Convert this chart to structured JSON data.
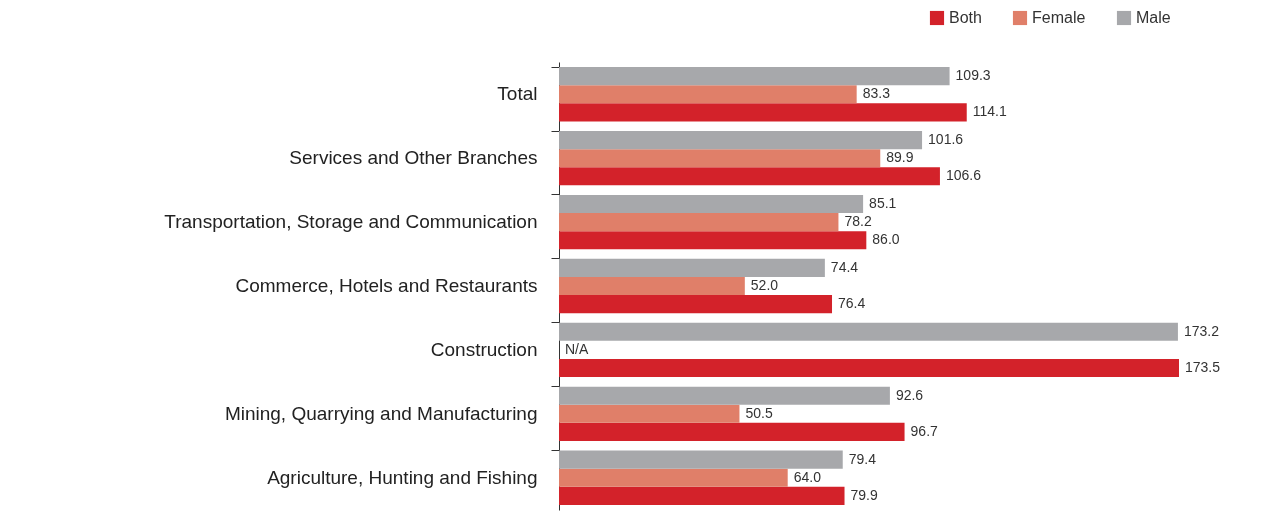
{
  "chart_data": {
    "type": "bar",
    "orientation": "horizontal",
    "legend": "top right",
    "categories": [
      "Total",
      "Services and Other Branches",
      "Transportation, Storage and Communication",
      "Commerce, Hotels and Restaurants",
      "Construction",
      "Mining, Quarrying and Manufacturing",
      "Agriculture, Hunting and Fishing"
    ],
    "series": [
      {
        "name": "Both",
        "color": "#d3222a",
        "values": [
          114.1,
          106.6,
          86.0,
          76.4,
          173.5,
          96.7,
          79.9
        ],
        "value_labels": [
          "114.1",
          "106.6",
          "86.0",
          "76.4",
          "173.5",
          "96.7",
          "79.9"
        ]
      },
      {
        "name": "Female",
        "color": "#e07f69",
        "values": [
          83.3,
          89.9,
          78.2,
          52.0,
          null,
          50.5,
          64.0
        ],
        "value_labels": [
          "83.3",
          "89.9",
          "78.2",
          "52.0",
          "N/A",
          "50.5",
          "64.0"
        ]
      },
      {
        "name": "Male",
        "color": "#a7a8ab",
        "values": [
          109.3,
          101.6,
          85.1,
          74.4,
          173.2,
          92.6,
          79.4
        ],
        "value_labels": [
          "109.3",
          "101.6",
          "85.1",
          "74.4",
          "173.2",
          "92.6",
          "79.4"
        ]
      }
    ]
  }
}
